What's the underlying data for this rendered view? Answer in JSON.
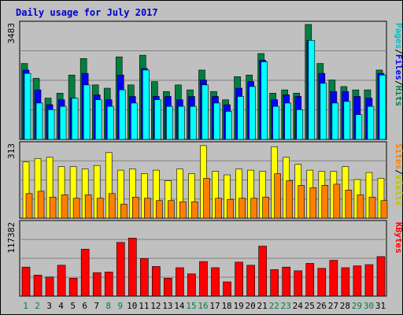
{
  "title": "Daily usage for July 2017",
  "chart_data": [
    {
      "type": "bar",
      "panel": "top",
      "ymax_label": "3483",
      "ylim": [
        0,
        3483
      ],
      "legend": [
        "Pages",
        "/",
        "Files",
        "/",
        "Hits"
      ],
      "colors": {
        "hits": "#008040",
        "files": "#0000ff",
        "pages": "#00ffff"
      },
      "categories": [
        "1",
        "2",
        "3",
        "4",
        "5",
        "6",
        "7",
        "8",
        "9",
        "10",
        "11",
        "12",
        "13",
        "14",
        "15",
        "16",
        "17",
        "18",
        "19",
        "20",
        "21",
        "22",
        "23",
        "24",
        "25",
        "26",
        "27",
        "28",
        "29",
        "30",
        "31"
      ],
      "series": [
        {
          "name": "Hits",
          "values": [
            2300,
            1850,
            1250,
            1400,
            1950,
            2450,
            1650,
            1550,
            2500,
            1650,
            2550,
            1750,
            1450,
            1650,
            1500,
            2100,
            1450,
            1200,
            1900,
            1950,
            2600,
            1400,
            1500,
            1400,
            3483,
            2300,
            1800,
            1600,
            1500,
            1500,
            2100
          ]
        },
        {
          "name": "Files",
          "values": [
            2100,
            1500,
            1050,
            1200,
            1250,
            2000,
            1350,
            1200,
            1950,
            1300,
            2150,
            1300,
            1300,
            1200,
            1300,
            1800,
            1300,
            1050,
            1550,
            1750,
            2400,
            1200,
            1350,
            1300,
            3000,
            2000,
            1450,
            1450,
            1300,
            1250,
            2000
          ]
        },
        {
          "name": "Pages",
          "values": [
            2000,
            1100,
            900,
            1000,
            1250,
            1650,
            1200,
            1000,
            1500,
            1100,
            2100,
            1200,
            1000,
            1000,
            1000,
            1650,
            1100,
            850,
            1300,
            1600,
            2350,
            1000,
            1100,
            900,
            3000,
            1700,
            1100,
            1150,
            750,
            1000,
            1950
          ]
        }
      ]
    },
    {
      "type": "bar",
      "panel": "middle",
      "ymax_label": "313",
      "ylim": [
        0,
        313
      ],
      "legend": [
        "Sites",
        "/",
        "Visits"
      ],
      "colors": {
        "visits": "#ffff00",
        "sites": "#ff8000"
      },
      "categories": [
        "1",
        "2",
        "3",
        "4",
        "5",
        "6",
        "7",
        "8",
        "9",
        "10",
        "11",
        "12",
        "13",
        "14",
        "15",
        "16",
        "17",
        "18",
        "19",
        "20",
        "21",
        "22",
        "23",
        "24",
        "25",
        "26",
        "27",
        "28",
        "29",
        "30",
        "31"
      ],
      "series": [
        {
          "name": "Visits",
          "values": [
            240,
            255,
            260,
            220,
            220,
            210,
            225,
            280,
            205,
            210,
            190,
            205,
            160,
            210,
            190,
            310,
            200,
            185,
            210,
            205,
            200,
            305,
            260,
            230,
            205,
            200,
            200,
            220,
            165,
            195,
            170
          ]
        },
        {
          "name": "Sites",
          "values": [
            105,
            115,
            90,
            100,
            85,
            100,
            85,
            105,
            60,
            90,
            85,
            75,
            75,
            70,
            70,
            170,
            85,
            80,
            85,
            85,
            90,
            190,
            160,
            140,
            130,
            140,
            145,
            120,
            100,
            90,
            75
          ]
        }
      ]
    },
    {
      "type": "bar",
      "panel": "bottom",
      "ymax_label": "117382",
      "ylim": [
        0,
        117382
      ],
      "legend": [
        "KBytes"
      ],
      "colors": {
        "kbytes": "#ff0000"
      },
      "categories": [
        "1",
        "2",
        "3",
        "4",
        "5",
        "6",
        "7",
        "8",
        "9",
        "10",
        "11",
        "12",
        "13",
        "14",
        "15",
        "16",
        "17",
        "18",
        "19",
        "20",
        "21",
        "22",
        "23",
        "24",
        "25",
        "26",
        "27",
        "28",
        "29",
        "30",
        "31"
      ],
      "series": [
        {
          "name": "KBytes",
          "values": [
            47000,
            34000,
            31000,
            50000,
            29000,
            76000,
            38000,
            39000,
            87000,
            94000,
            61000,
            48000,
            29000,
            46000,
            36000,
            56000,
            46000,
            23000,
            55000,
            50000,
            81000,
            43000,
            47000,
            41000,
            53000,
            45000,
            58000,
            46000,
            49000,
            51000,
            64000
          ]
        }
      ]
    }
  ],
  "weekend_days": [
    "1",
    "2",
    "8",
    "9",
    "15",
    "16",
    "22",
    "23",
    "29",
    "30"
  ],
  "day_colors": {
    "weekday": "#000000",
    "weekend": "#008040"
  }
}
